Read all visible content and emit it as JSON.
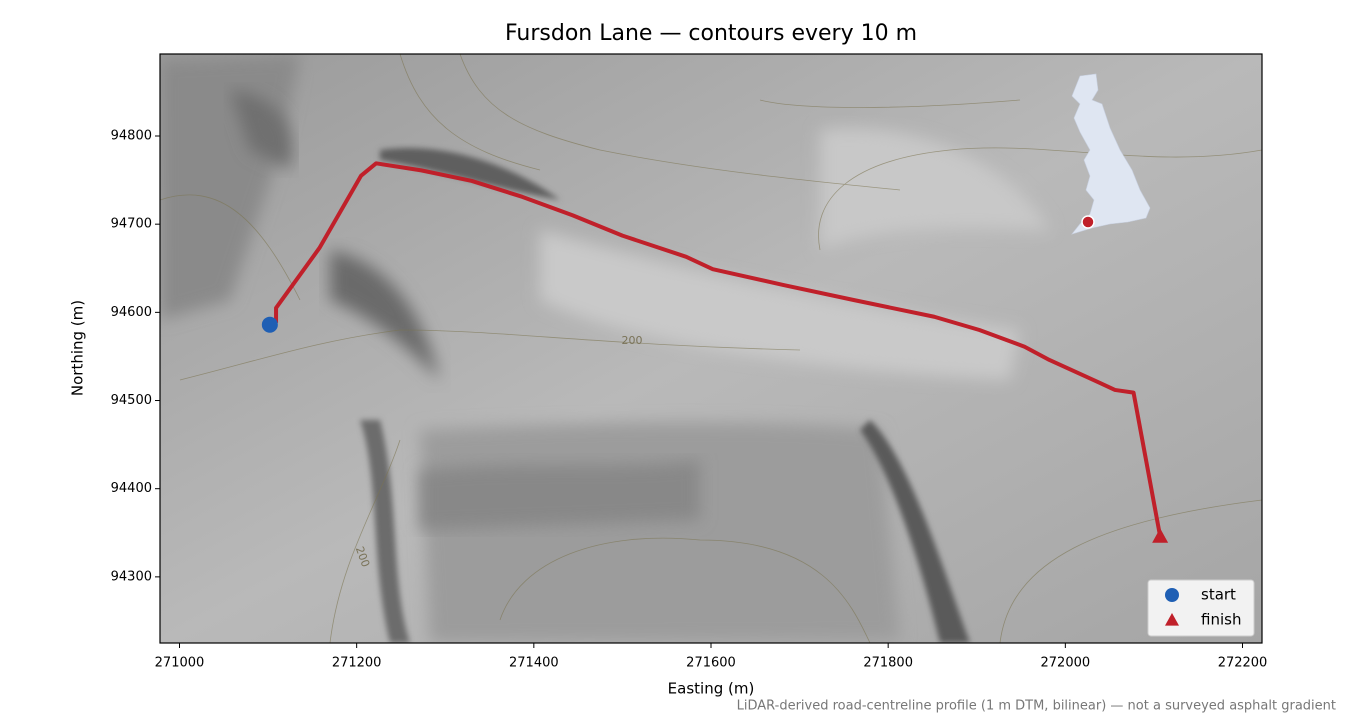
{
  "chart_data": {
    "type": "line",
    "title": "Fursdon Lane — contours every 10 m",
    "xlabel": "Easting (m)",
    "ylabel": "Northing (m)",
    "note": "LiDAR-derived road-centreline profile (1 m DTM, bilinear) — not a surveyed asphalt gradient",
    "xlim": [
      270978,
      272222
    ],
    "ylim": [
      94225,
      94893
    ],
    "xticks": [
      271000,
      271200,
      271400,
      271600,
      271800,
      272000,
      272200
    ],
    "yticks": [
      94300,
      94400,
      94500,
      94600,
      94700,
      94800
    ],
    "contour_labels": [
      "200",
      "200"
    ],
    "route": {
      "color": "#c0202a",
      "x": [
        271109,
        271109,
        271158,
        271205,
        271222,
        271273,
        271330,
        271387,
        271444,
        271500,
        271572,
        271602,
        271682,
        271761,
        271852,
        271903,
        271954,
        271982,
        272039,
        272056,
        272077,
        272107
      ],
      "y": [
        94588,
        94605,
        94673,
        94755,
        94769,
        94761,
        94749,
        94731,
        94710,
        94687,
        94663,
        94649,
        94631,
        94614,
        94595,
        94580,
        94561,
        94546,
        94520,
        94512,
        94509,
        94346
      ]
    },
    "markers": [
      {
        "name": "start",
        "marker": "circle",
        "color": "#1f5fb4",
        "x": 271102,
        "y": 94586
      },
      {
        "name": "finish",
        "marker": "triangle",
        "color": "#c0202a",
        "x": 272107,
        "y": 94346
      }
    ]
  }
}
